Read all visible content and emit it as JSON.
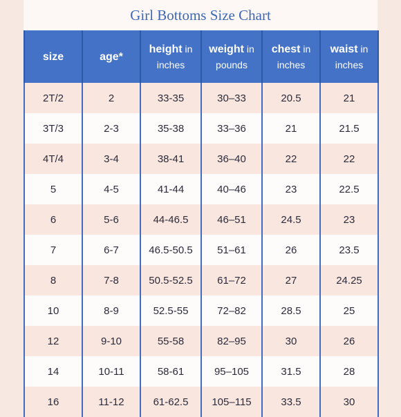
{
  "title": "Girl Bottoms Size Chart",
  "headers": [
    {
      "main": "size",
      "sub": ""
    },
    {
      "main": "age*",
      "sub": ""
    },
    {
      "main": "height",
      "sub": " in inches"
    },
    {
      "main": "weight",
      "sub": " in pounds"
    },
    {
      "main": "chest",
      "sub": " in inches"
    },
    {
      "main": "waist",
      "sub": " in inches"
    }
  ],
  "rows": [
    [
      "2T/2",
      "2",
      "33-35",
      "30–33",
      "20.5",
      "21"
    ],
    [
      "3T/3",
      "2-3",
      "35-38",
      "33–36",
      "21",
      "21.5"
    ],
    [
      "4T/4",
      "3-4",
      "38-41",
      "36–40",
      "22",
      "22"
    ],
    [
      "5",
      "4-5",
      "41-44",
      "40–46",
      "23",
      "22.5"
    ],
    [
      "6",
      "5-6",
      "44-46.5",
      "46–51",
      "24.5",
      "23"
    ],
    [
      "7",
      "6-7",
      "46.5-50.5",
      "51–61",
      "26",
      "23.5"
    ],
    [
      "8",
      "7-8",
      "50.5-52.5",
      "61–72",
      "27",
      "24.25"
    ],
    [
      "10",
      "8-9",
      "52.5-55",
      "72–82",
      "28.5",
      "25"
    ],
    [
      "12",
      "9-10",
      "55-58",
      "82–95",
      "30",
      "26"
    ],
    [
      "14",
      "10-11",
      "58-61",
      "95–105",
      "31.5",
      "28"
    ],
    [
      "16",
      "11-12",
      "61-62.5",
      "105–115",
      "33.5",
      "30"
    ]
  ]
}
